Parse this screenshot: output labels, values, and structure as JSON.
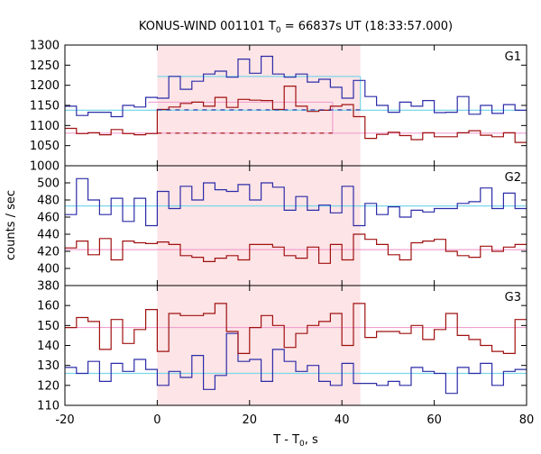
{
  "chart_data": {
    "type": "line",
    "title": {
      "main": "KONUS-WIND 001101 T",
      "sub": "0",
      "rest": " = 66837s UT (18:33:57.000)"
    },
    "xlabel": {
      "main": "T - T",
      "sub": "0",
      "rest": ", s"
    },
    "ylabel": "counts / sec",
    "xlim": [
      -20,
      80
    ],
    "xticks": [
      "-20",
      "0",
      "20",
      "40",
      "60",
      "80"
    ],
    "highlight_interval": [
      0,
      44
    ],
    "colors": {
      "high_series": "#2c2ca8",
      "low_series": "#a01010",
      "fit_high": "#7ad8ea",
      "fit_low": "#f0a0d0",
      "band": "#fde4e6"
    },
    "panels": [
      {
        "name": "G1",
        "ylim": [
          1000,
          1300
        ],
        "yticks": [
          "1000",
          "1050",
          "1100",
          "1150",
          "1200",
          "1250",
          "1300"
        ],
        "step_edges": [
          -20,
          -17.5,
          -15,
          -12.5,
          -10,
          -7.5,
          -5,
          -2.5,
          0,
          2.5,
          5,
          7.5,
          10,
          12.5,
          15,
          17.5,
          20,
          22.5,
          25,
          27.5,
          30,
          32.5,
          35,
          37.5,
          40,
          42.5,
          45,
          47.5,
          50,
          52.5,
          55,
          57.5,
          60,
          62.5,
          65,
          67.5,
          70,
          72.5,
          75,
          77.5,
          80
        ],
        "series": [
          {
            "values": [
              1148,
              1125,
              1133,
              1133,
              1122,
              1150,
              1146,
              1170,
              1168,
              1222,
              1190,
              1210,
              1228,
              1235,
              1220,
              1265,
              1230,
              1272,
              1228,
              1220,
              1228,
              1208,
              1215,
              1195,
              1168,
              1212,
              1172,
              1150,
              1133,
              1158,
              1148,
              1162,
              1132,
              1133,
              1172,
              1128,
              1150,
              1130,
              1152,
              1138
            ]
          },
          {
            "values": [
              1093,
              1080,
              1082,
              1077,
              1090,
              1080,
              1077,
              1080,
              1140,
              1146,
              1155,
              1158,
              1148,
              1170,
              1145,
              1165,
              1163,
              1162,
              1140,
              1198,
              1148,
              1135,
              1138,
              1148,
              1152,
              1122,
              1068,
              1078,
              1083,
              1075,
              1065,
              1082,
              1072,
              1072,
              1082,
              1087,
              1076,
              1072,
              1082,
              1058
            ]
          }
        ],
        "fit_lines": [
          {
            "value": 1138,
            "from": -20,
            "to": 80,
            "kind": "high"
          },
          {
            "value": 1081,
            "from": -20,
            "to": 80,
            "kind": "low"
          },
          {
            "value": 1222,
            "from": 0,
            "to": 44,
            "kind": "high"
          },
          {
            "value": 1158,
            "from": -2,
            "to": 38,
            "kind": "low"
          }
        ],
        "dashed_lines": [
          {
            "value": 1139,
            "from": 0,
            "to": 44,
            "kind": "high"
          },
          {
            "value": 1081,
            "from": 0,
            "to": 38,
            "kind": "low"
          }
        ],
        "fit_box_edges": [
          {
            "x": 44,
            "from": 1138,
            "to": 1222,
            "kind": "high"
          },
          {
            "x": 38,
            "from": 1081,
            "to": 1158,
            "kind": "low"
          }
        ]
      },
      {
        "name": "G2",
        "ylim": [
          380,
          520
        ],
        "yticks": [
          "380",
          "400",
          "420",
          "440",
          "460",
          "480",
          "500"
        ],
        "step_edges": [
          -20,
          -17.5,
          -15,
          -12.5,
          -10,
          -7.5,
          -5,
          -2.5,
          0,
          2.5,
          5,
          7.5,
          10,
          12.5,
          15,
          17.5,
          20,
          22.5,
          25,
          27.5,
          30,
          32.5,
          35,
          37.5,
          40,
          42.5,
          45,
          47.5,
          50,
          52.5,
          55,
          57.5,
          60,
          62.5,
          65,
          67.5,
          70,
          72.5,
          75,
          77.5,
          80
        ],
        "series": [
          {
            "values": [
              463,
              505,
              480,
              463,
              482,
              455,
              482,
              450,
              490,
              470,
              496,
              480,
              500,
              492,
              490,
              498,
              480,
              500,
              495,
              468,
              484,
              468,
              474,
              465,
              496,
              450,
              476,
              463,
              472,
              460,
              468,
              466,
              470,
              470,
              476,
              478,
              494,
              470,
              488,
              470
            ]
          },
          {
            "values": [
              424,
              432,
              416,
              435,
              410,
              432,
              430,
              429,
              431,
              428,
              415,
              413,
              408,
              412,
              415,
              410,
              428,
              428,
              425,
              415,
              412,
              425,
              406,
              428,
              410,
              440,
              434,
              428,
              416,
              410,
              430,
              432,
              434,
              420,
              415,
              413,
              426,
              420,
              425,
              428
            ]
          }
        ],
        "fit_lines": [
          {
            "value": 473,
            "from": -20,
            "to": 80,
            "kind": "high"
          },
          {
            "value": 422,
            "from": -20,
            "to": 80,
            "kind": "low"
          }
        ],
        "dashed_lines": [],
        "fit_box_edges": []
      },
      {
        "name": "G3",
        "ylim": [
          110,
          170
        ],
        "yticks": [
          "110",
          "120",
          "130",
          "140",
          "150",
          "160"
        ],
        "step_edges": [
          -20,
          -17.5,
          -15,
          -12.5,
          -10,
          -7.5,
          -5,
          -2.5,
          0,
          2.5,
          5,
          7.5,
          10,
          12.5,
          15,
          17.5,
          20,
          22.5,
          25,
          27.5,
          30,
          32.5,
          35,
          37.5,
          40,
          42.5,
          45,
          47.5,
          50,
          52.5,
          55,
          57.5,
          60,
          62.5,
          65,
          67.5,
          70,
          72.5,
          75,
          77.5,
          80
        ],
        "series": [
          {
            "values": [
              129,
              126,
              132,
              122,
              131,
              127,
              133,
              128,
              120,
              127,
              124,
              135,
              118,
              125,
              146,
              132,
              133,
              122,
              138,
              132,
              127,
              130,
              122,
              120,
              131,
              121,
              121,
              120,
              122,
              120,
              129,
              127,
              126,
              116,
              129,
              126,
              131,
              120,
              127,
              128
            ]
          },
          {
            "values": [
              149,
              154,
              152,
              138,
              153,
              141,
              148,
              158,
              137,
              156,
              155,
              155,
              156,
              161,
              147,
              136,
              149,
              155,
              150,
              139,
              146,
              150,
              152,
              156,
              140,
              161,
              144,
              147,
              147,
              146,
              150,
              143,
              148,
              156,
              145,
              143,
              140,
              137,
              136,
              153
            ]
          }
        ],
        "fit_lines": [
          {
            "value": 126,
            "from": -20,
            "to": 80,
            "kind": "high"
          },
          {
            "value": 149,
            "from": -20,
            "to": 80,
            "kind": "low"
          }
        ],
        "dashed_lines": [],
        "fit_box_edges": []
      }
    ]
  }
}
